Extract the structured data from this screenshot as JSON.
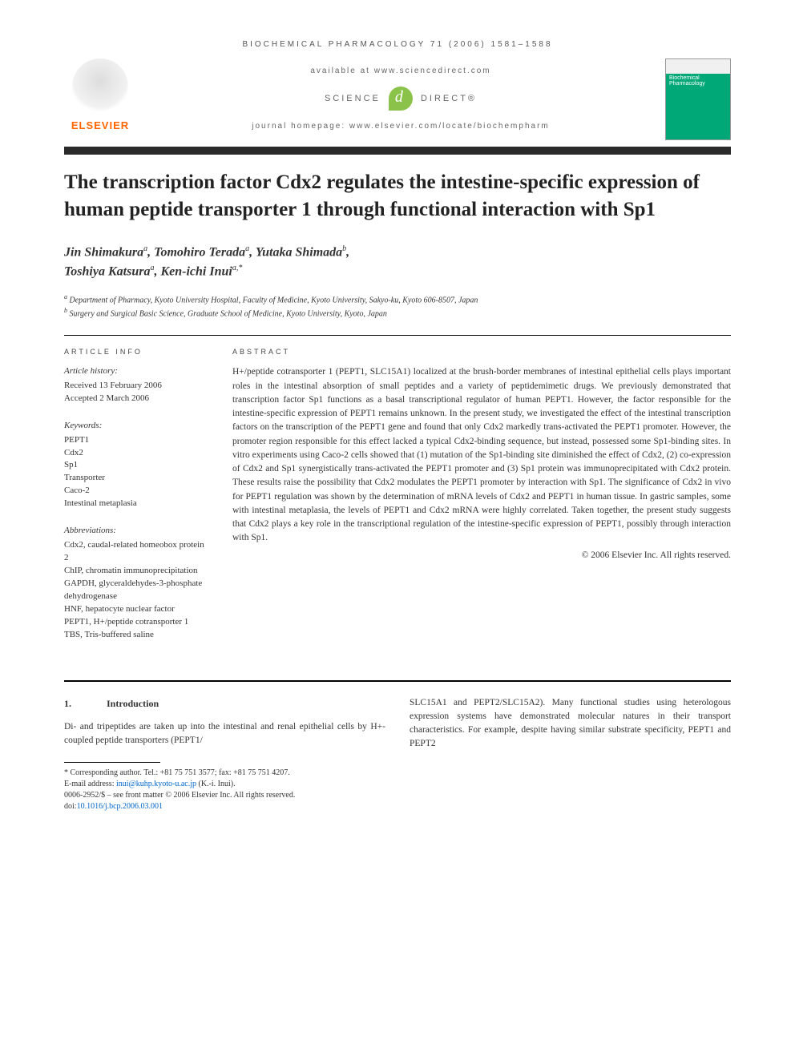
{
  "header": {
    "citation": "BIOCHEMICAL PHARMACOLOGY 71 (2006) 1581–1588",
    "available_at": "available at www.sciencedirect.com",
    "sd_left": "SCIENCE",
    "sd_right": "DIRECT®",
    "homepage": "journal homepage: www.elsevier.com/locate/biochempharm",
    "publisher": "ELSEVIER",
    "journal_cover_title": "Biochemical Pharmacology"
  },
  "title": "The transcription factor Cdx2 regulates the intestine-specific expression of human peptide transporter 1 through functional interaction with Sp1",
  "authors_html_parts": {
    "a1": "Jin Shimakura",
    "a1_sup": "a",
    "a2": "Tomohiro Terada",
    "a2_sup": "a",
    "a3": "Yutaka Shimada",
    "a3_sup": "b",
    "a4": "Toshiya Katsura",
    "a4_sup": "a",
    "a5": "Ken-ichi Inui",
    "a5_sup": "a,*"
  },
  "affiliations": {
    "a": "Department of Pharmacy, Kyoto University Hospital, Faculty of Medicine, Kyoto University, Sakyo-ku, Kyoto 606-8507, Japan",
    "b": "Surgery and Surgical Basic Science, Graduate School of Medicine, Kyoto University, Kyoto, Japan"
  },
  "article_info": {
    "label": "ARTICLE INFO",
    "history_title": "Article history:",
    "received": "Received 13 February 2006",
    "accepted": "Accepted 2 March 2006",
    "keywords_title": "Keywords:",
    "keywords": [
      "PEPT1",
      "Cdx2",
      "Sp1",
      "Transporter",
      "Caco-2",
      "Intestinal metaplasia"
    ],
    "abbrev_title": "Abbreviations:",
    "abbreviations": [
      "Cdx2, caudal-related homeobox protein 2",
      "ChIP, chromatin immunoprecipitation",
      "GAPDH, glyceraldehydes-3-phosphate dehydrogenase",
      "HNF, hepatocyte nuclear factor",
      "PEPT1, H+/peptide cotransporter 1",
      "TBS, Tris-buffered saline"
    ]
  },
  "abstract": {
    "label": "ABSTRACT",
    "text": "H+/peptide cotransporter 1 (PEPT1, SLC15A1) localized at the brush-border membranes of intestinal epithelial cells plays important roles in the intestinal absorption of small peptides and a variety of peptidemimetic drugs. We previously demonstrated that transcription factor Sp1 functions as a basal transcriptional regulator of human PEPT1. However, the factor responsible for the intestine-specific expression of PEPT1 remains unknown. In the present study, we investigated the effect of the intestinal transcription factors on the transcription of the PEPT1 gene and found that only Cdx2 markedly trans-activated the PEPT1 promoter. However, the promoter region responsible for this effect lacked a typical Cdx2-binding sequence, but instead, possessed some Sp1-binding sites. In vitro experiments using Caco-2 cells showed that (1) mutation of the Sp1-binding site diminished the effect of Cdx2, (2) co-expression of Cdx2 and Sp1 synergistically trans-activated the PEPT1 promoter and (3) Sp1 protein was immunoprecipitated with Cdx2 protein. These results raise the possibility that Cdx2 modulates the PEPT1 promoter by interaction with Sp1. The significance of Cdx2 in vivo for PEPT1 regulation was shown by the determination of mRNA levels of Cdx2 and PEPT1 in human tissue. In gastric samples, some with intestinal metaplasia, the levels of PEPT1 and Cdx2 mRNA were highly correlated. Taken together, the present study suggests that Cdx2 plays a key role in the transcriptional regulation of the intestine-specific expression of PEPT1, possibly through interaction with Sp1.",
    "copyright": "© 2006 Elsevier Inc. All rights reserved."
  },
  "intro": {
    "number": "1.",
    "heading": "Introduction",
    "left_text": "Di- and tripeptides are taken up into the intestinal and renal epithelial cells by H+-coupled peptide transporters (PEPT1/",
    "right_text": "SLC15A1 and PEPT2/SLC15A2). Many functional studies using heterologous expression systems have demonstrated molecular natures in their transport characteristics. For example, despite having similar substrate specificity, PEPT1 and PEPT2"
  },
  "footnotes": {
    "corresponding": "* Corresponding author. Tel.: +81 75 751 3577; fax: +81 75 751 4207.",
    "email_label": "E-mail address:",
    "email": "inui@kuhp.kyoto-u.ac.jp",
    "email_attrib": "(K.-i. Inui).",
    "issn_line": "0006-2952/$ – see front matter © 2006 Elsevier Inc. All rights reserved.",
    "doi_label": "doi:",
    "doi": "10.1016/j.bcp.2006.03.001"
  }
}
